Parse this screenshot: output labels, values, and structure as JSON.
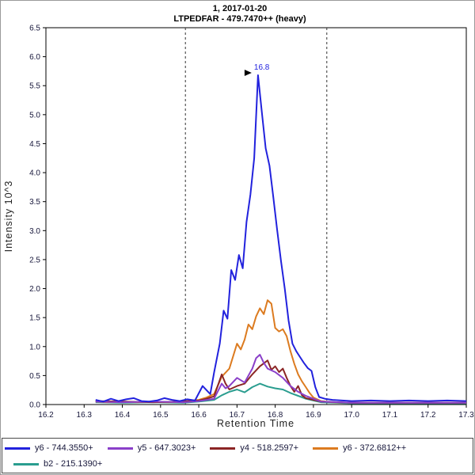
{
  "header": {
    "title": "1, 2017-01-20",
    "subtitle": "LTPEDFAR - 479.7470++ (heavy)"
  },
  "chart_data": {
    "type": "line",
    "title": "1, 2017-01-20",
    "subtitle": "LTPEDFAR - 479.7470++ (heavy)",
    "xlabel": "Retention Time",
    "ylabel": "Intensity 10^3",
    "xlim": [
      16.2,
      17.3
    ],
    "ylim": [
      0,
      6.5
    ],
    "xticks": [
      16.2,
      16.3,
      16.4,
      16.5,
      16.6,
      16.7,
      16.8,
      16.9,
      17.0,
      17.1,
      17.2,
      17.3
    ],
    "yticks": [
      0.0,
      0.5,
      1.0,
      1.5,
      2.0,
      2.5,
      3.0,
      3.5,
      4.0,
      4.5,
      5.0,
      5.5,
      6.0,
      6.5
    ],
    "grid": false,
    "legend_position": "bottom",
    "integration_boundaries": [
      16.565,
      16.935
    ],
    "peak_annotation": {
      "x": 16.755,
      "y": 5.68,
      "label": "16.8"
    },
    "series": [
      {
        "name": "y6 - 744.3550+",
        "color": "#2222dd",
        "points": [
          [
            16.33,
            0.08
          ],
          [
            16.35,
            0.05
          ],
          [
            16.37,
            0.1
          ],
          [
            16.39,
            0.06
          ],
          [
            16.41,
            0.09
          ],
          [
            16.43,
            0.11
          ],
          [
            16.45,
            0.06
          ],
          [
            16.47,
            0.05
          ],
          [
            16.49,
            0.07
          ],
          [
            16.51,
            0.11
          ],
          [
            16.53,
            0.08
          ],
          [
            16.55,
            0.06
          ],
          [
            16.57,
            0.09
          ],
          [
            16.59,
            0.07
          ],
          [
            16.61,
            0.32
          ],
          [
            16.63,
            0.18
          ],
          [
            16.64,
            0.55
          ],
          [
            16.655,
            1.05
          ],
          [
            16.665,
            1.62
          ],
          [
            16.675,
            1.48
          ],
          [
            16.685,
            2.32
          ],
          [
            16.695,
            2.15
          ],
          [
            16.705,
            2.58
          ],
          [
            16.715,
            2.35
          ],
          [
            16.725,
            3.15
          ],
          [
            16.735,
            3.62
          ],
          [
            16.745,
            4.25
          ],
          [
            16.755,
            5.68
          ],
          [
            16.765,
            5.05
          ],
          [
            16.775,
            4.42
          ],
          [
            16.785,
            4.12
          ],
          [
            16.795,
            3.58
          ],
          [
            16.805,
            3.02
          ],
          [
            16.815,
            2.48
          ],
          [
            16.825,
            2.0
          ],
          [
            16.835,
            1.45
          ],
          [
            16.845,
            1.05
          ],
          [
            16.855,
            0.92
          ],
          [
            16.865,
            0.82
          ],
          [
            16.875,
            0.72
          ],
          [
            16.885,
            0.63
          ],
          [
            16.895,
            0.58
          ],
          [
            16.905,
            0.3
          ],
          [
            16.915,
            0.13
          ],
          [
            16.93,
            0.1
          ],
          [
            16.95,
            0.08
          ],
          [
            17.0,
            0.06
          ],
          [
            17.05,
            0.07
          ],
          [
            17.1,
            0.06
          ],
          [
            17.15,
            0.07
          ],
          [
            17.2,
            0.06
          ],
          [
            17.25,
            0.07
          ],
          [
            17.3,
            0.06
          ]
        ]
      },
      {
        "name": "y5 - 647.3023+",
        "color": "#8a3fc9",
        "points": [
          [
            16.33,
            0.05
          ],
          [
            16.4,
            0.04
          ],
          [
            16.48,
            0.05
          ],
          [
            16.56,
            0.04
          ],
          [
            16.6,
            0.06
          ],
          [
            16.64,
            0.1
          ],
          [
            16.66,
            0.36
          ],
          [
            16.67,
            0.28
          ],
          [
            16.68,
            0.32
          ],
          [
            16.7,
            0.46
          ],
          [
            16.72,
            0.38
          ],
          [
            16.74,
            0.62
          ],
          [
            16.75,
            0.8
          ],
          [
            16.76,
            0.86
          ],
          [
            16.77,
            0.72
          ],
          [
            16.78,
            0.62
          ],
          [
            16.8,
            0.56
          ],
          [
            16.82,
            0.46
          ],
          [
            16.84,
            0.32
          ],
          [
            16.86,
            0.22
          ],
          [
            16.88,
            0.15
          ],
          [
            16.9,
            0.1
          ],
          [
            16.92,
            0.05
          ],
          [
            17.0,
            0.03
          ],
          [
            17.1,
            0.03
          ],
          [
            17.2,
            0.03
          ],
          [
            17.3,
            0.03
          ]
        ]
      },
      {
        "name": "y4 - 518.2597+",
        "color": "#8b2525",
        "points": [
          [
            16.33,
            0.06
          ],
          [
            16.4,
            0.05
          ],
          [
            16.48,
            0.04
          ],
          [
            16.56,
            0.05
          ],
          [
            16.6,
            0.07
          ],
          [
            16.62,
            0.1
          ],
          [
            16.64,
            0.14
          ],
          [
            16.66,
            0.52
          ],
          [
            16.67,
            0.36
          ],
          [
            16.68,
            0.26
          ],
          [
            16.7,
            0.32
          ],
          [
            16.72,
            0.36
          ],
          [
            16.74,
            0.52
          ],
          [
            16.76,
            0.66
          ],
          [
            16.78,
            0.76
          ],
          [
            16.79,
            0.6
          ],
          [
            16.8,
            0.66
          ],
          [
            16.81,
            0.56
          ],
          [
            16.82,
            0.62
          ],
          [
            16.83,
            0.46
          ],
          [
            16.84,
            0.32
          ],
          [
            16.85,
            0.22
          ],
          [
            16.86,
            0.32
          ],
          [
            16.87,
            0.16
          ],
          [
            16.88,
            0.11
          ],
          [
            16.9,
            0.08
          ],
          [
            16.92,
            0.05
          ],
          [
            17.0,
            0.03
          ],
          [
            17.1,
            0.03
          ],
          [
            17.2,
            0.03
          ],
          [
            17.3,
            0.03
          ]
        ]
      },
      {
        "name": "y6 - 372.6812++",
        "color": "#dc7b20",
        "points": [
          [
            16.33,
            0.05
          ],
          [
            16.36,
            0.04
          ],
          [
            16.4,
            0.05
          ],
          [
            16.44,
            0.04
          ],
          [
            16.48,
            0.05
          ],
          [
            16.52,
            0.04
          ],
          [
            16.56,
            0.05
          ],
          [
            16.6,
            0.08
          ],
          [
            16.62,
            0.12
          ],
          [
            16.64,
            0.18
          ],
          [
            16.66,
            0.48
          ],
          [
            16.68,
            0.62
          ],
          [
            16.7,
            1.05
          ],
          [
            16.71,
            0.95
          ],
          [
            16.72,
            1.12
          ],
          [
            16.73,
            1.38
          ],
          [
            16.74,
            1.3
          ],
          [
            16.75,
            1.52
          ],
          [
            16.76,
            1.66
          ],
          [
            16.77,
            1.56
          ],
          [
            16.78,
            1.8
          ],
          [
            16.79,
            1.74
          ],
          [
            16.8,
            1.32
          ],
          [
            16.81,
            1.26
          ],
          [
            16.82,
            1.3
          ],
          [
            16.83,
            1.18
          ],
          [
            16.84,
            0.92
          ],
          [
            16.85,
            0.7
          ],
          [
            16.86,
            0.52
          ],
          [
            16.87,
            0.4
          ],
          [
            16.88,
            0.3
          ],
          [
            16.89,
            0.2
          ],
          [
            16.9,
            0.12
          ],
          [
            16.92,
            0.06
          ],
          [
            16.95,
            0.04
          ],
          [
            17.0,
            0.03
          ],
          [
            17.1,
            0.03
          ],
          [
            17.2,
            0.03
          ],
          [
            17.3,
            0.03
          ]
        ]
      },
      {
        "name": "b2 - 215.1390+",
        "color": "#2a9d8f",
        "points": [
          [
            16.33,
            0.04
          ],
          [
            16.4,
            0.03
          ],
          [
            16.48,
            0.04
          ],
          [
            16.56,
            0.03
          ],
          [
            16.6,
            0.05
          ],
          [
            16.64,
            0.08
          ],
          [
            16.66,
            0.16
          ],
          [
            16.68,
            0.22
          ],
          [
            16.7,
            0.26
          ],
          [
            16.72,
            0.21
          ],
          [
            16.74,
            0.3
          ],
          [
            16.76,
            0.36
          ],
          [
            16.78,
            0.31
          ],
          [
            16.8,
            0.28
          ],
          [
            16.82,
            0.26
          ],
          [
            16.84,
            0.2
          ],
          [
            16.86,
            0.15
          ],
          [
            16.88,
            0.1
          ],
          [
            16.9,
            0.07
          ],
          [
            16.92,
            0.04
          ],
          [
            17.0,
            0.02
          ],
          [
            17.1,
            0.02
          ],
          [
            17.2,
            0.02
          ],
          [
            17.3,
            0.02
          ]
        ]
      }
    ]
  },
  "legend": {
    "items": [
      {
        "label": "y6 - 744.3550+",
        "color": "#2222dd",
        "row": 0
      },
      {
        "label": "y5 - 647.3023+",
        "color": "#8a3fc9",
        "row": 0
      },
      {
        "label": "y4 - 518.2597+",
        "color": "#8b2525",
        "row": 0
      },
      {
        "label": "y6 - 372.6812++",
        "color": "#dc7b20",
        "row": 0
      },
      {
        "label": "b2 - 215.1390+",
        "color": "#2a9d8f",
        "row": 1
      }
    ]
  }
}
